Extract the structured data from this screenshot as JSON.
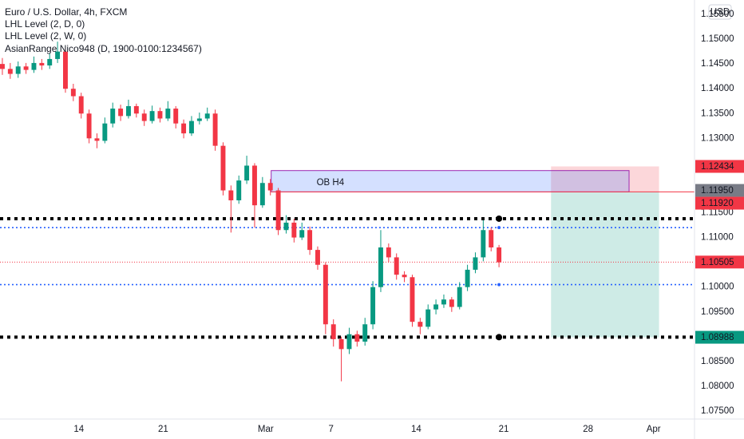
{
  "chart_data": {
    "type": "candlestick",
    "title": "Euro / U.S. Dollar, 4h, FXCM",
    "indicators": [
      "LHL Level (2, D, 0)",
      "LHL Level (2, W, 0)",
      "AsianRange Nico948 (D, 1900-0100:1234567)"
    ],
    "currency": "USD",
    "colors": {
      "up": "#089981",
      "down": "#f23645"
    },
    "open": [
      1.145,
      1.144,
      1.143,
      1.1445,
      1.1438,
      1.1452,
      1.1447,
      1.146,
      1.1475,
      1.14,
      1.1385,
      1.135,
      1.13,
      1.1295,
      1.133,
      1.136,
      1.1345,
      1.1365,
      1.135,
      1.1335,
      1.1355,
      1.134,
      1.136,
      1.133,
      1.131,
      1.1335,
      1.134,
      1.135,
      1.1285,
      1.1195,
      1.1175,
      1.1215,
      1.1245,
      1.1165,
      1.121,
      1.1195,
      1.1115,
      1.113,
      1.11,
      1.1115,
      1.1075,
      1.1045,
      1.0925,
      1.0895,
      1.0875,
      1.0905,
      1.089,
      1.0925,
      1.1,
      1.108,
      1.106,
      1.1025,
      1.102,
      1.093,
      1.092,
      1.0955,
      1.0965,
      1.0975,
      1.096,
      1.1,
      1.1035,
      1.106,
      1.1115,
      1.108
    ],
    "high": [
      1.1462,
      1.1452,
      1.1455,
      1.1452,
      1.1465,
      1.146,
      1.1472,
      1.1495,
      1.148,
      1.141,
      1.1392,
      1.1358,
      1.131,
      1.1342,
      1.1372,
      1.1368,
      1.1378,
      1.137,
      1.1358,
      1.1366,
      1.1362,
      1.1375,
      1.1365,
      1.1338,
      1.1345,
      1.1352,
      1.1362,
      1.1358,
      1.1292,
      1.1205,
      1.1225,
      1.1265,
      1.125,
      1.1222,
      1.1218,
      1.12,
      1.1145,
      1.1138,
      1.113,
      1.1122,
      1.1082,
      1.105,
      1.0935,
      1.09,
      1.0918,
      1.0912,
      1.0938,
      1.1012,
      1.1115,
      1.1088,
      1.1068,
      1.1032,
      1.1025,
      1.0938,
      1.0965,
      1.0975,
      1.0985,
      1.098,
      1.101,
      1.1045,
      1.107,
      1.1135,
      1.112,
      1.1085
    ],
    "low": [
      1.1428,
      1.142,
      1.1422,
      1.143,
      1.1432,
      1.1438,
      1.144,
      1.1452,
      1.1392,
      1.1375,
      1.134,
      1.129,
      1.128,
      1.129,
      1.1322,
      1.1335,
      1.134,
      1.1342,
      1.1325,
      1.133,
      1.1332,
      1.1335,
      1.132,
      1.13,
      1.1305,
      1.1328,
      1.1335,
      1.1275,
      1.1185,
      1.111,
      1.1168,
      1.1208,
      1.112,
      1.116,
      1.1185,
      1.1105,
      1.1108,
      1.109,
      1.1095,
      1.1065,
      1.1035,
      1.0905,
      1.088,
      1.081,
      1.0865,
      1.088,
      1.0882,
      1.0915,
      1.099,
      1.105,
      1.1015,
      1.101,
      1.092,
      1.0905,
      1.0915,
      1.0945,
      1.0958,
      1.095,
      1.0955,
      1.0992,
      1.1028,
      1.1052,
      1.1072,
      1.104
    ],
    "close": [
      1.144,
      1.143,
      1.1445,
      1.1438,
      1.1452,
      1.1447,
      1.146,
      1.1475,
      1.14,
      1.1385,
      1.135,
      1.13,
      1.1295,
      1.133,
      1.136,
      1.1345,
      1.1365,
      1.135,
      1.1335,
      1.1355,
      1.134,
      1.136,
      1.133,
      1.131,
      1.1335,
      1.134,
      1.135,
      1.1285,
      1.1195,
      1.1175,
      1.1215,
      1.1245,
      1.1165,
      1.121,
      1.1195,
      1.1115,
      1.113,
      1.11,
      1.1115,
      1.1075,
      1.1045,
      1.0925,
      1.0895,
      1.0875,
      1.0905,
      1.089,
      1.0925,
      1.1,
      1.108,
      1.106,
      1.1025,
      1.102,
      1.093,
      1.092,
      1.0955,
      1.0965,
      1.0975,
      1.096,
      1.1,
      1.1035,
      1.106,
      1.1115,
      1.108,
      1.105
    ],
    "xlim": [
      -0.3,
      87.8
    ],
    "xticks": [
      {
        "value": 9.7,
        "label": "14"
      },
      {
        "value": 20.4,
        "label": "21"
      },
      {
        "value": 33.4,
        "label": "Mar"
      },
      {
        "value": 41.7,
        "label": "7"
      },
      {
        "value": 52.5,
        "label": "14"
      },
      {
        "value": 63.6,
        "label": "21"
      },
      {
        "value": 74.3,
        "label": "28"
      },
      {
        "value": 82.6,
        "label": "Apr"
      }
    ],
    "ylim": [
      1.07339,
      1.1579
    ],
    "yticks": [
      {
        "value": 1.155,
        "label": "1.15500"
      },
      {
        "value": 1.15,
        "label": "1.15000"
      },
      {
        "value": 1.145,
        "label": "1.14500"
      },
      {
        "value": 1.14,
        "label": "1.14000"
      },
      {
        "value": 1.135,
        "label": "1.13500"
      },
      {
        "value": 1.13,
        "label": "1.13000"
      },
      {
        "value": 1.115,
        "label": "1.11500"
      },
      {
        "value": 1.11,
        "label": "1.11000"
      },
      {
        "value": 1.1,
        "label": "1.10000"
      },
      {
        "value": 1.095,
        "label": "1.09500"
      },
      {
        "value": 1.085,
        "label": "1.08500"
      },
      {
        "value": 1.08,
        "label": "1.08000"
      },
      {
        "value": 1.075,
        "label": "1.07500"
      }
    ],
    "levels": [
      {
        "value": 1.1138,
        "color": "#000000",
        "style": "heavy",
        "marker_x": 63
      },
      {
        "value": 1.0899,
        "color": "#000000",
        "style": "heavy",
        "marker_x": 63
      },
      {
        "value": 1.112,
        "color": "#2962ff",
        "style": "light",
        "marker_x": 63
      },
      {
        "value": 1.1005,
        "color": "#2962ff",
        "style": "light",
        "marker_x": 63
      },
      {
        "value": 1.10505,
        "color": "#f23645",
        "style": "thin"
      }
    ],
    "order_block": {
      "label": "OB H4",
      "top": 1.1235,
      "bottom": 1.1192,
      "x": [
        34.1,
        79.5
      ],
      "color": "#9c27b0"
    },
    "position": {
      "entry": 1.1192,
      "stop": 1.12434,
      "target": 1.08988,
      "x": [
        69.6,
        83.3
      ]
    },
    "price_labels": [
      {
        "value": 1.12434,
        "label": "1.12434",
        "color": "#f23645"
      },
      {
        "value": 1.1195,
        "label": "1.11950",
        "color": "#787b86"
      },
      {
        "value": 1.1192,
        "label": "1.11920",
        "color": "#f23645"
      },
      {
        "value": 1.10505,
        "label": "1.10505",
        "color": "#f23645"
      },
      {
        "value": 1.08988,
        "label": "1.08988",
        "color": "#089981"
      }
    ]
  }
}
